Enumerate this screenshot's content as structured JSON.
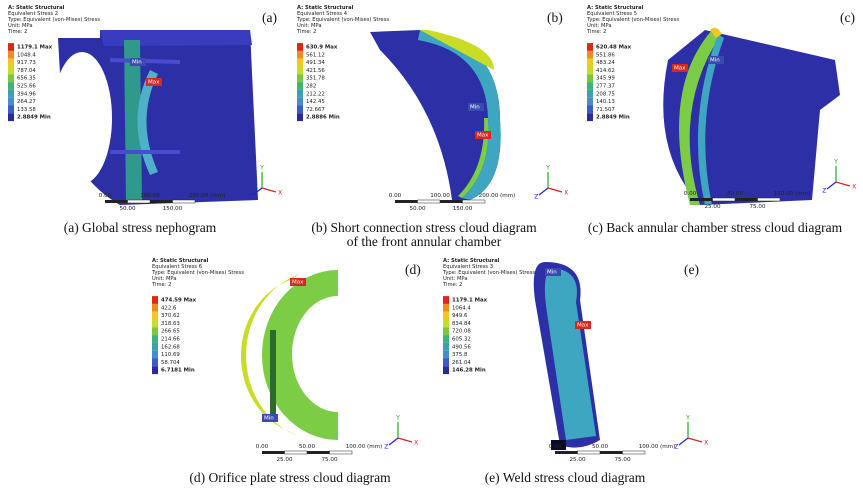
{
  "panels": [
    {
      "letter": "(a)",
      "header": [
        "A: Static Structural",
        "Equivalent Stress 2",
        "Type: Equivalent (von-Mises) Stress",
        "Unit: MPa",
        "Time: 2"
      ],
      "legend": [
        "1179.1 Max",
        "1048.4",
        "917.73",
        "787.04",
        "656.35",
        "525.66",
        "394.96",
        "264.27",
        "133.58",
        "2.8849 Min"
      ],
      "scale": {
        "top": [
          "0.00",
          "100.00",
          "200.00 (mm)"
        ],
        "bottom": [
          "50.00",
          "150.00"
        ]
      },
      "tags": [
        "Max",
        "Min"
      ],
      "triad": [
        "X",
        "Y",
        "Z"
      ],
      "caption": [
        "(a) Global stress nephogram"
      ]
    },
    {
      "letter": "(b)",
      "header": [
        "A: Static Structural",
        "Equivalent Stress 4",
        "Type: Equivalent (von-Mises) Stress",
        "Unit: MPa",
        "Time: 2"
      ],
      "legend": [
        "630.9 Max",
        "561.12",
        "491.34",
        "421.56",
        "351.78",
        "282",
        "212.22",
        "142.45",
        "72.667",
        "2.8886 Min"
      ],
      "scale": {
        "top": [
          "0.00",
          "100.00",
          "200.00 (mm)"
        ],
        "bottom": [
          "50.00",
          "150.00"
        ]
      },
      "tags": [
        "Max",
        "Min"
      ],
      "triad": [
        "X",
        "Y",
        "Z"
      ],
      "caption": [
        "(b) Short connection stress cloud diagram",
        "of the front annular chamber"
      ]
    },
    {
      "letter": "(c)",
      "header": [
        "A: Static Structural",
        "Equivalent Stress 5",
        "Type: Equivalent (von-Mises) Stress",
        "Unit: MPa",
        "Time: 2"
      ],
      "legend": [
        "620.48 Max",
        "551.86",
        "483.24",
        "414.62",
        "345.99",
        "277.37",
        "208.75",
        "140.13",
        "71.507",
        "2.8849 Min"
      ],
      "scale": {
        "top": [
          "0.00",
          "50.00",
          "100.00 (mm)"
        ],
        "bottom": [
          "25.00",
          "75.00"
        ]
      },
      "tags": [
        "Max",
        "Min"
      ],
      "triad": [
        "X",
        "Y",
        "Z"
      ],
      "caption": [
        "(c) Back annular chamber stress cloud diagram"
      ]
    },
    {
      "letter": "(d)",
      "header": [
        "A: Static Structural",
        "Equivalent Stress 6",
        "Type: Equivalent (von-Mises) Stress",
        "Unit: MPa",
        "Time: 2"
      ],
      "legend": [
        "474.59 Max",
        "422.6",
        "370.62",
        "318.63",
        "266.65",
        "214.66",
        "162.68",
        "110.69",
        "58.704",
        "6.7181 Min"
      ],
      "scale": {
        "top": [
          "0.00",
          "50.00",
          "100.00 (mm)"
        ],
        "bottom": [
          "25.00",
          "75.00"
        ]
      },
      "tags": [
        "Max",
        "Min"
      ],
      "triad": [
        "X",
        "Y",
        "Z"
      ],
      "caption": [
        "(d) Orifice plate stress cloud diagram"
      ]
    },
    {
      "letter": "(e)",
      "header": [
        "A: Static Structural",
        "Equivalent Stress 3",
        "Type: Equivalent (von-Mises) Stress",
        "Unit: MPa",
        "Time: 2"
      ],
      "legend": [
        "1179.1 Max",
        "1064.4",
        "949.6",
        "834.84",
        "720.08",
        "605.32",
        "490.56",
        "375.8",
        "261.04",
        "146.28 Min"
      ],
      "scale": {
        "top": [
          "0.00",
          "50.00",
          "100.00 (mm)"
        ],
        "bottom": [
          "25.00",
          "75.00"
        ]
      },
      "tags": [
        "Max",
        "Min"
      ],
      "triad": [
        "X",
        "Y",
        "Z"
      ],
      "caption": [
        "(e) Weld stress cloud diagram"
      ]
    }
  ]
}
